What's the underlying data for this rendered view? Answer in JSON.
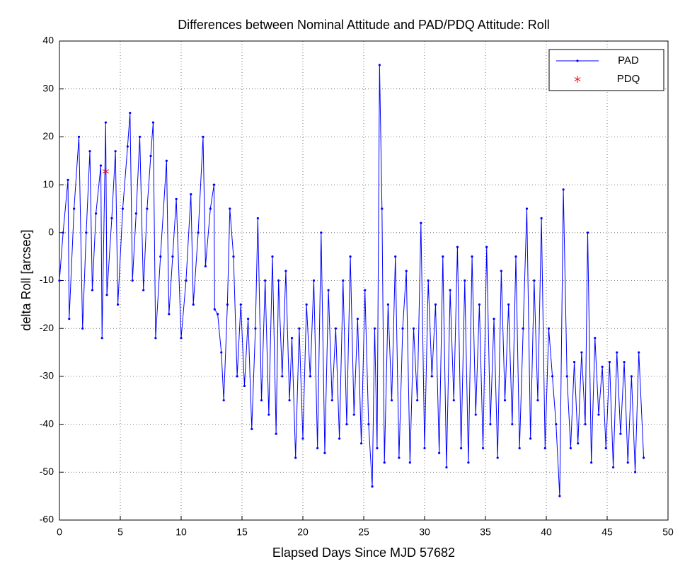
{
  "chart_data": {
    "type": "line",
    "title": "Differences between Nominal Attitude and PAD/PDQ Attitude: Roll",
    "xlabel": "Elapsed Days Since MJD 57682",
    "ylabel": "delta Roll [arcsec]",
    "xlim": [
      0,
      50
    ],
    "ylim": [
      -60,
      40
    ],
    "xticks": [
      0,
      5,
      10,
      15,
      20,
      25,
      30,
      35,
      40,
      45,
      50
    ],
    "yticks": [
      -60,
      -50,
      -40,
      -30,
      -20,
      -10,
      0,
      10,
      20,
      30,
      40
    ],
    "grid": true,
    "legend": "upper right",
    "series": [
      {
        "name": "PAD",
        "color": "#0000ff",
        "marker": "dot",
        "line": true,
        "x": [
          0,
          0.3,
          0.7,
          0.8,
          1.2,
          1.6,
          1.9,
          2.2,
          2.5,
          2.7,
          3.0,
          3.4,
          3.5,
          3.8,
          3.9,
          4.3,
          4.6,
          4.8,
          5.2,
          5.6,
          5.8,
          6.0,
          6.3,
          6.6,
          6.9,
          7.2,
          7.5,
          7.7,
          7.9,
          8.3,
          8.8,
          9.0,
          9.3,
          9.6,
          10.0,
          10.4,
          10.8,
          11.0,
          11.4,
          11.8,
          12.0,
          12.4,
          12.7,
          12.75,
          13.0,
          13.3,
          13.5,
          13.8,
          14.0,
          14.3,
          14.6,
          14.9,
          15.2,
          15.5,
          15.8,
          16.1,
          16.3,
          16.6,
          16.9,
          17.2,
          17.5,
          17.8,
          18.0,
          18.3,
          18.6,
          18.9,
          19.1,
          19.4,
          19.7,
          20.0,
          20.3,
          20.6,
          20.9,
          21.2,
          21.5,
          21.8,
          22.1,
          22.4,
          22.7,
          23.0,
          23.3,
          23.6,
          23.9,
          24.2,
          24.5,
          24.8,
          25.1,
          25.4,
          25.7,
          25.9,
          26.1,
          26.3,
          26.5,
          26.7,
          27.0,
          27.3,
          27.6,
          27.9,
          28.2,
          28.5,
          28.8,
          29.1,
          29.4,
          29.7,
          30.0,
          30.3,
          30.6,
          30.9,
          31.2,
          31.5,
          31.8,
          32.1,
          32.4,
          32.7,
          33.0,
          33.3,
          33.6,
          33.9,
          34.2,
          34.5,
          34.8,
          35.1,
          35.4,
          35.7,
          36.0,
          36.3,
          36.6,
          36.9,
          37.2,
          37.5,
          37.8,
          38.1,
          38.4,
          38.7,
          39.0,
          39.3,
          39.6,
          39.9,
          40.2,
          40.5,
          40.8,
          41.1,
          41.4,
          41.7,
          42.0,
          42.3,
          42.6,
          42.9,
          43.2,
          43.4,
          43.7,
          44.0,
          44.3,
          44.6,
          44.9,
          45.2,
          45.5,
          45.8,
          46.1,
          46.4,
          46.7,
          47.0,
          47.3,
          47.6,
          48.0
        ],
        "values": [
          -10,
          0,
          11,
          -18,
          5,
          20,
          -20,
          0,
          17,
          -12,
          4,
          14,
          -22,
          23,
          -13,
          3,
          17,
          -15,
          5,
          18,
          25,
          -10,
          4,
          20,
          -12,
          5,
          16,
          23,
          -22,
          -5,
          15,
          -17,
          -5,
          7,
          -22,
          -10,
          8,
          -15,
          0,
          20,
          -7,
          5,
          10,
          -16,
          -17,
          -25,
          -35,
          -15,
          5,
          -5,
          -30,
          -15,
          -32,
          -18,
          -41,
          -20,
          3,
          -35,
          -10,
          -38,
          -5,
          -42,
          -10,
          -30,
          -8,
          -35,
          -22,
          -47,
          -20,
          -43,
          -15,
          -30,
          -10,
          -45,
          0,
          -46,
          -12,
          -35,
          -20,
          -43,
          -10,
          -40,
          -5,
          -38,
          -18,
          -44,
          -12,
          -40,
          -53,
          -20,
          -45,
          35,
          5,
          -48,
          -15,
          -35,
          -5,
          -47,
          -20,
          -8,
          -48,
          -20,
          -35,
          2,
          -45,
          -10,
          -30,
          -15,
          -46,
          -5,
          -49,
          -12,
          -35,
          -3,
          -45,
          -10,
          -48,
          -5,
          -38,
          -15,
          -45,
          -3,
          -40,
          -18,
          -47,
          -8,
          -35,
          -15,
          -40,
          -5,
          -45,
          -20,
          5,
          -43,
          -10,
          -35,
          3,
          -45,
          -20,
          -30,
          -40,
          -55,
          9,
          -30,
          -45,
          -27,
          -44,
          -25,
          -40,
          0,
          -48,
          -22,
          -38,
          -28,
          -45,
          -27,
          -49,
          -25,
          -42,
          -27,
          -48,
          -30,
          -50,
          -25,
          -47
        ]
      },
      {
        "name": "PDQ",
        "color": "#ff0000",
        "marker": "asterisk",
        "line": false,
        "x": [
          3.8
        ],
        "values": [
          12.8
        ]
      }
    ]
  }
}
